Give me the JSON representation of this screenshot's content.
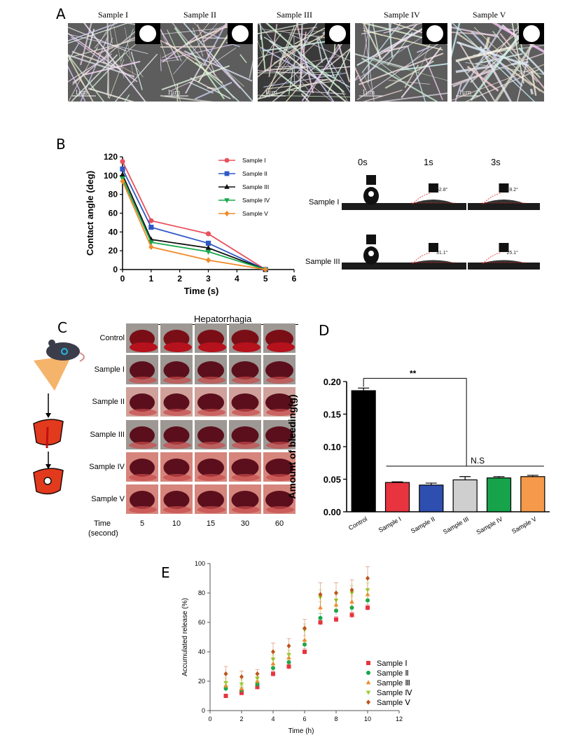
{
  "panel_labels": {
    "a": "A",
    "b": "B",
    "c": "C",
    "d": "D",
    "e": "E"
  },
  "sem": {
    "labels": [
      "Sample I",
      "Sample II",
      "Sample III",
      "Sample IV",
      "Sample V"
    ],
    "scale_bar": "1μm"
  },
  "chart_b": {
    "type": "line",
    "xlabel": "Time (s)",
    "ylabel": "Contact angle (deg)",
    "xlim": [
      0,
      6
    ],
    "ylim": [
      0,
      120
    ],
    "xticks": [
      "0",
      "1",
      "2",
      "3",
      "4",
      "5",
      "6"
    ],
    "yticks": [
      "0",
      "20",
      "40",
      "60",
      "80",
      "100",
      "120"
    ],
    "x": [
      0,
      1,
      3,
      5
    ],
    "series": [
      {
        "name": "Sample I",
        "color": "#e8505b",
        "marker": "circle",
        "values": [
          115,
          52,
          38,
          0
        ]
      },
      {
        "name": "Sample II",
        "color": "#2e58c4",
        "marker": "square",
        "values": [
          107,
          45,
          28,
          0
        ]
      },
      {
        "name": "Sample III",
        "color": "#111111",
        "marker": "triangle",
        "values": [
          101,
          32,
          23,
          0
        ]
      },
      {
        "name": "Sample IV",
        "color": "#18a84a",
        "marker": "tri-down",
        "values": [
          97,
          29,
          19,
          0
        ]
      },
      {
        "name": "Sample V",
        "color": "#f08a2a",
        "marker": "diamond",
        "values": [
          94,
          24,
          10,
          0
        ]
      }
    ]
  },
  "droplet": {
    "times": [
      "0s",
      "1s",
      "3s"
    ],
    "rows": [
      {
        "label": "Sample I",
        "angles": [
          "52.8°",
          "49.2°"
        ]
      },
      {
        "label": "Sample III",
        "angles": [
          "31.1°",
          "25.1°"
        ]
      }
    ]
  },
  "panel_c": {
    "title": "Hepatorrhagia",
    "rows": [
      "Control",
      "Sample I",
      "Sample II",
      "Sample III",
      "Sample IV",
      "Sample V"
    ],
    "time_label_1": "Time",
    "time_label_2": "(second)",
    "times": [
      "5",
      "10",
      "15",
      "30",
      "60"
    ]
  },
  "chart_d": {
    "type": "bar",
    "ylabel": "Amount of bleeding(g)",
    "ylim": [
      0,
      0.2
    ],
    "yticks": [
      "0.00",
      "0.05",
      "0.10",
      "0.15",
      "0.20"
    ],
    "categories": [
      "Control",
      "Sample I",
      "Sample II",
      "Sample III",
      "Sample IV",
      "Sample V"
    ],
    "values": [
      0.186,
      0.045,
      0.041,
      0.049,
      0.052,
      0.054
    ],
    "errors": [
      0.004,
      0.001,
      0.003,
      0.005,
      0.002,
      0.002
    ],
    "colors": [
      "#000000",
      "#e8343f",
      "#2e4fb0",
      "#cfcfcf",
      "#16a34a",
      "#f59a4a"
    ],
    "sig_label": "**",
    "ns_label": "N.S"
  },
  "chart_e": {
    "type": "scatter",
    "xlabel": "Time (h)",
    "ylabel": "Accumulated release (%)",
    "xlim": [
      0,
      12
    ],
    "ylim": [
      0,
      100
    ],
    "xticks": [
      "0",
      "2",
      "4",
      "6",
      "8",
      "10",
      "12"
    ],
    "yticks": [
      "0",
      "20",
      "40",
      "60",
      "80",
      "100"
    ],
    "x": [
      1,
      2,
      3,
      4,
      5,
      6,
      7,
      8,
      9,
      10
    ],
    "series": [
      {
        "name": "Sample  Ⅰ",
        "color": "#e8343f",
        "marker": "square",
        "values": [
          10,
          12,
          16,
          25,
          30,
          40,
          60,
          62,
          65,
          70
        ],
        "errors": [
          1,
          1,
          1,
          2,
          2,
          2,
          2,
          2,
          2,
          2
        ]
      },
      {
        "name": "Sample  Ⅱ",
        "color": "#1aa64a",
        "marker": "circle",
        "values": [
          15,
          14,
          18,
          29,
          33,
          45,
          63,
          68,
          70,
          75
        ],
        "errors": [
          2,
          2,
          2,
          2,
          2,
          3,
          3,
          3,
          3,
          3
        ]
      },
      {
        "name": "Sample Ⅲ",
        "color": "#f08a2a",
        "marker": "triangle",
        "values": [
          17,
          15,
          20,
          32,
          36,
          48,
          70,
          72,
          74,
          79
        ],
        "errors": [
          2,
          2,
          2,
          3,
          3,
          3,
          4,
          4,
          4,
          4
        ]
      },
      {
        "name": "Sample  Ⅳ",
        "color": "#9acd32",
        "marker": "tri-down",
        "values": [
          19,
          18,
          22,
          35,
          38,
          55,
          77,
          75,
          80,
          82
        ],
        "errors": [
          3,
          3,
          3,
          3,
          3,
          4,
          5,
          5,
          5,
          5
        ]
      },
      {
        "name": "Sample  Ⅴ",
        "color": "#c0531b",
        "marker": "diamond",
        "values": [
          25,
          23,
          25,
          40,
          44,
          56,
          79,
          80,
          82,
          90
        ],
        "errors": [
          5,
          4,
          3,
          6,
          5,
          6,
          8,
          7,
          7,
          8
        ]
      }
    ]
  }
}
